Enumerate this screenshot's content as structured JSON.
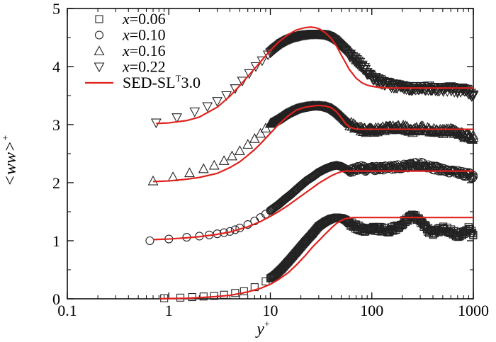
{
  "chart_data": {
    "type": "scatter",
    "title": "",
    "xlabel": "y",
    "xlabel_sup": "+",
    "ylabel": "<ww>",
    "ylabel_sup": "+",
    "x_scale": "log",
    "xlim": [
      0.1,
      1000
    ],
    "ylim": [
      0,
      5
    ],
    "x_ticks": [
      0.1,
      1,
      10,
      100,
      1000
    ],
    "x_tick_labels": [
      "0.1",
      "1",
      "10",
      "100",
      "1000"
    ],
    "y_ticks": [
      0,
      1,
      2,
      3,
      4,
      5
    ],
    "y_tick_labels": [
      "0",
      "1",
      "2",
      "3",
      "4",
      "5"
    ],
    "legend_position": "top-left",
    "series": [
      {
        "name": "x=0.06",
        "legend_var": "x",
        "legend_value": "=0.06",
        "marker": "square",
        "offset": 0,
        "x": [
          0.9,
          1.3,
          1.7,
          2.2,
          2.8,
          3.5,
          4.5,
          5.5,
          7,
          9,
          11,
          13,
          15,
          18,
          22,
          26,
          30,
          35,
          40,
          45,
          50,
          55,
          60,
          70,
          80,
          90,
          100,
          120,
          150,
          180,
          220,
          260,
          300,
          350,
          400,
          500,
          600,
          700,
          800,
          900,
          1000
        ],
        "y": [
          0.01,
          0.02,
          0.03,
          0.04,
          0.05,
          0.07,
          0.1,
          0.13,
          0.2,
          0.3,
          0.4,
          0.52,
          0.64,
          0.8,
          0.98,
          1.12,
          1.25,
          1.33,
          1.38,
          1.4,
          1.39,
          1.36,
          1.3,
          1.24,
          1.2,
          1.18,
          1.2,
          1.2,
          1.18,
          1.24,
          1.36,
          1.43,
          1.35,
          1.2,
          1.12,
          1.22,
          1.16,
          1.1,
          1.14,
          1.2,
          1.1
        ]
      },
      {
        "name": "x=0.10",
        "legend_var": "x",
        "legend_value": "=0.10",
        "marker": "circle",
        "offset": 1,
        "x": [
          0.65,
          1.0,
          1.5,
          2.0,
          2.5,
          3.0,
          3.5,
          4.0,
          4.5,
          5,
          6,
          7,
          8,
          9,
          10,
          12,
          14,
          16,
          18,
          20,
          23,
          26,
          30,
          35,
          40,
          45,
          50,
          55,
          60,
          70,
          80,
          90,
          100,
          120,
          150,
          200,
          250,
          300,
          400,
          500,
          600,
          700,
          800,
          900,
          1000
        ],
        "y": [
          0.0,
          0.03,
          0.06,
          0.08,
          0.1,
          0.12,
          0.14,
          0.16,
          0.19,
          0.22,
          0.28,
          0.34,
          0.4,
          0.46,
          0.52,
          0.62,
          0.72,
          0.8,
          0.88,
          0.95,
          1.04,
          1.1,
          1.18,
          1.24,
          1.28,
          1.3,
          1.28,
          1.24,
          1.2,
          1.24,
          1.26,
          1.22,
          1.24,
          1.25,
          1.26,
          1.28,
          1.3,
          1.32,
          1.26,
          1.22,
          1.2,
          1.18,
          1.15,
          1.14,
          1.1
        ]
      },
      {
        "name": "x=0.16",
        "legend_var": "x",
        "legend_value": "=0.16",
        "marker": "triangle-up",
        "offset": 2,
        "x": [
          0.7,
          1.1,
          1.6,
          2.2,
          2.8,
          3.5,
          4.2,
          5,
          6,
          7,
          8,
          9,
          10,
          12,
          14,
          16,
          18,
          20,
          23,
          26,
          30,
          35,
          40,
          45,
          50,
          55,
          60,
          70,
          80,
          90,
          100,
          120,
          150,
          200,
          250,
          300,
          400,
          500,
          600,
          700,
          800,
          900,
          1000
        ],
        "y": [
          0.03,
          0.1,
          0.17,
          0.24,
          0.3,
          0.38,
          0.46,
          0.55,
          0.66,
          0.76,
          0.85,
          0.94,
          1.02,
          1.1,
          1.18,
          1.23,
          1.27,
          1.29,
          1.31,
          1.32,
          1.32,
          1.31,
          1.28,
          1.22,
          1.15,
          1.08,
          1.02,
          0.96,
          0.92,
          0.9,
          0.9,
          0.92,
          0.94,
          0.96,
          0.9,
          0.95,
          0.9,
          0.88,
          0.9,
          0.85,
          0.82,
          0.8,
          0.78
        ]
      },
      {
        "name": "x=0.22",
        "legend_var": "x",
        "legend_value": "=0.22",
        "marker": "triangle-down",
        "offset": 3,
        "x": [
          0.75,
          1.2,
          1.8,
          2.4,
          3.0,
          3.7,
          4.5,
          5.3,
          6.2,
          7.2,
          8.3,
          9.5,
          11,
          13,
          15,
          17,
          19,
          21,
          23,
          26,
          30,
          34,
          38,
          43,
          48,
          55,
          60,
          70,
          80,
          90,
          100,
          120,
          150,
          200,
          250,
          300,
          400,
          500,
          600,
          700,
          800,
          900,
          1000
        ],
        "y": [
          0.03,
          0.12,
          0.22,
          0.31,
          0.4,
          0.5,
          0.62,
          0.75,
          0.88,
          1.0,
          1.1,
          1.2,
          1.3,
          1.4,
          1.46,
          1.5,
          1.52,
          1.54,
          1.55,
          1.56,
          1.56,
          1.55,
          1.52,
          1.46,
          1.38,
          1.28,
          1.2,
          1.1,
          1.0,
          0.9,
          0.82,
          0.74,
          0.68,
          0.64,
          0.62,
          0.62,
          0.63,
          0.6,
          0.62,
          0.58,
          0.6,
          0.56,
          0.5
        ]
      },
      {
        "name": "SED-SL^T3.0",
        "legend_main": "SED-SL",
        "legend_sup": "T",
        "legend_tail": "3.0",
        "marker": "line",
        "color": "#e0221e",
        "curves": [
          {
            "x": [
              0.8,
              1,
              1.5,
              2,
              3,
              4,
              5,
              6,
              8,
              10,
              12,
              15,
              18,
              22,
              26,
              30,
              35,
              40,
              45,
              50,
              55,
              60,
              65,
              70,
              80,
              90,
              100,
              150,
              200,
              300,
              500,
              700,
              1000
            ],
            "y": [
              0.0,
              0.005,
              0.01,
              0.02,
              0.04,
              0.06,
              0.09,
              0.12,
              0.18,
              0.25,
              0.33,
              0.45,
              0.58,
              0.74,
              0.89,
              1.0,
              1.12,
              1.22,
              1.3,
              1.35,
              1.38,
              1.39,
              1.4,
              1.4,
              1.4,
              1.4,
              1.4,
              1.4,
              1.4,
              1.4,
              1.4,
              1.4,
              1.4
            ]
          },
          {
            "x": [
              0.7,
              1,
              1.5,
              2,
              3,
              4,
              5,
              6,
              8,
              10,
              12,
              15,
              18,
              22,
              26,
              30,
              35,
              40,
              45,
              50,
              55,
              60,
              70,
              80,
              100,
              200,
              500,
              1000
            ],
            "y": [
              1.02,
              1.03,
              1.05,
              1.07,
              1.11,
              1.15,
              1.2,
              1.24,
              1.33,
              1.42,
              1.5,
              1.61,
              1.71,
              1.82,
              1.91,
              1.99,
              2.06,
              2.12,
              2.16,
              2.19,
              2.2,
              2.2,
              2.2,
              2.2,
              2.2,
              2.2,
              2.2,
              2.2
            ]
          },
          {
            "x": [
              0.7,
              1,
              1.5,
              2,
              3,
              4,
              5,
              6,
              7,
              8,
              10,
              12,
              15,
              18,
              22,
              26,
              30,
              35,
              40,
              45,
              50,
              55,
              60,
              70,
              80,
              100,
              200,
              500,
              1000
            ],
            "y": [
              2.02,
              2.03,
              2.06,
              2.09,
              2.16,
              2.26,
              2.36,
              2.47,
              2.57,
              2.67,
              2.85,
              3.0,
              3.15,
              3.25,
              3.3,
              3.32,
              3.33,
              3.32,
              3.29,
              3.22,
              3.12,
              3.02,
              2.96,
              2.92,
              2.92,
              2.92,
              2.92,
              2.92,
              2.92
            ]
          },
          {
            "x": [
              0.75,
              1,
              1.5,
              2,
              3,
              4,
              5,
              6,
              8,
              10,
              12,
              15,
              18,
              22,
              25,
              28,
              31,
              35,
              40,
              45,
              50,
              55,
              60,
              70,
              80,
              90,
              100,
              120,
              150,
              200,
              500,
              1000
            ],
            "y": [
              3.02,
              3.03,
              3.07,
              3.13,
              3.3,
              3.49,
              3.67,
              3.83,
              4.08,
              4.28,
              4.42,
              4.55,
              4.63,
              4.67,
              4.68,
              4.67,
              4.64,
              4.58,
              4.48,
              4.35,
              4.2,
              4.07,
              3.95,
              3.8,
              3.72,
              3.68,
              3.66,
              3.64,
              3.63,
              3.63,
              3.63,
              3.63
            ]
          }
        ]
      }
    ]
  }
}
